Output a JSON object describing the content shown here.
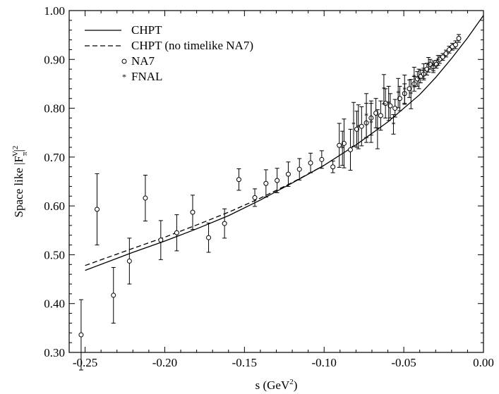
{
  "chart_data": {
    "type": "scatter",
    "title": "",
    "xlabel": {
      "main": "s (GeV",
      "sup": "2",
      "tail": ")"
    },
    "ylabel": {
      "main": "Space like |F",
      "sub": "π",
      "sup": "V",
      "tail": "|",
      "sup2": "2"
    },
    "xlim": [
      -0.26,
      0.0
    ],
    "ylim": [
      0.3,
      1.0
    ],
    "x_ticks": [
      -0.25,
      -0.2,
      -0.15,
      -0.1,
      -0.05,
      0.0
    ],
    "x_tick_labels": [
      "-0.25",
      "-0.20",
      "-0.15",
      "-0.10",
      "-0.05",
      "0.00"
    ],
    "y_ticks": [
      0.3,
      0.4,
      0.5,
      0.6,
      0.7,
      0.8,
      0.9,
      1.0
    ],
    "y_tick_labels": [
      "0.30",
      "0.40",
      "0.50",
      "0.60",
      "0.70",
      "0.80",
      "0.90",
      "1.00"
    ],
    "grid": false,
    "legend_position": "top-left",
    "legend": [
      {
        "label": "CHPT",
        "style": "solid-line"
      },
      {
        "label": "CHPT (no timelike NA7)",
        "style": "dashed-line"
      },
      {
        "label": "NA7",
        "style": "open-circle"
      },
      {
        "label": "FNAL",
        "style": "star"
      }
    ],
    "series": [
      {
        "name": "CHPT",
        "kind": "line",
        "x": [
          -0.25,
          -0.22,
          -0.2,
          -0.18,
          -0.16,
          -0.14,
          -0.12,
          -0.1,
          -0.08,
          -0.06,
          -0.04,
          -0.03,
          -0.02,
          -0.01,
          0.0
        ],
        "y": [
          0.468,
          0.505,
          0.528,
          0.553,
          0.58,
          0.612,
          0.647,
          0.683,
          0.725,
          0.772,
          0.828,
          0.863,
          0.902,
          0.944,
          0.99
        ]
      },
      {
        "name": "CHPT (no timelike NA7)",
        "kind": "line",
        "x": [
          -0.25,
          -0.22,
          -0.2,
          -0.18,
          -0.16,
          -0.14,
          -0.12,
          -0.1
        ],
        "y": [
          0.478,
          0.513,
          0.536,
          0.561,
          0.587,
          0.616,
          0.648,
          0.683
        ]
      },
      {
        "name": "NA7",
        "kind": "points",
        "x": [
          -0.2525,
          -0.2425,
          -0.2322,
          -0.2222,
          -0.2122,
          -0.2025,
          -0.1925,
          -0.1825,
          -0.1725,
          -0.1625,
          -0.1535,
          -0.1435,
          -0.1365,
          -0.1295,
          -0.1225,
          -0.1155,
          -0.1085,
          -0.1015,
          -0.0945,
          -0.0905,
          -0.0875,
          -0.0835,
          -0.0795,
          -0.0765,
          -0.0735,
          -0.0705,
          -0.0675,
          -0.0645,
          -0.0615,
          -0.0585,
          -0.0555,
          -0.0525,
          -0.0495,
          -0.0465,
          -0.0435,
          -0.0415,
          -0.0395,
          -0.0375,
          -0.0355,
          -0.0335,
          -0.0315,
          -0.0295,
          -0.0275,
          -0.0255,
          -0.0235,
          -0.0215,
          -0.0195,
          -0.0175,
          -0.0155
        ],
        "y": [
          0.336,
          0.593,
          0.417,
          0.487,
          0.616,
          0.53,
          0.545,
          0.587,
          0.535,
          0.564,
          0.654,
          0.617,
          0.646,
          0.652,
          0.665,
          0.675,
          0.688,
          0.695,
          0.68,
          0.724,
          0.728,
          0.715,
          0.757,
          0.763,
          0.77,
          0.78,
          0.79,
          0.785,
          0.81,
          0.805,
          0.8,
          0.82,
          0.83,
          0.84,
          0.85,
          0.86,
          0.865,
          0.87,
          0.88,
          0.89,
          0.885,
          0.89,
          0.9,
          0.905,
          0.912,
          0.92,
          0.926,
          0.93,
          0.943
        ],
        "err": [
          0.072,
          0.073,
          0.057,
          0.047,
          0.047,
          0.04,
          0.037,
          0.035,
          0.03,
          0.03,
          0.022,
          0.018,
          0.028,
          0.025,
          0.025,
          0.022,
          0.02,
          0.018,
          0.012,
          0.045,
          0.05,
          0.042,
          0.037,
          0.04,
          0.04,
          0.035,
          0.03,
          0.03,
          0.03,
          0.025,
          0.018,
          0.025,
          0.02,
          0.018,
          0.015,
          0.015,
          0.013,
          0.012,
          0.012,
          0.01,
          0.008,
          0.008,
          0.008,
          0.007,
          0.007,
          0.007,
          0.007,
          0.008,
          0.008
        ]
      },
      {
        "name": "FNAL",
        "kind": "stars",
        "x": [
          -0.0885,
          -0.0815,
          -0.0785,
          -0.0735,
          -0.0705,
          -0.0665,
          -0.0625,
          -0.0595,
          -0.0565,
          -0.0535,
          -0.0495,
          -0.0455,
          -0.0435,
          -0.0405,
          -0.0375,
          -0.0345,
          -0.0315,
          -0.0285
        ],
        "y": [
          0.718,
          0.767,
          0.762,
          0.785,
          0.77,
          0.757,
          0.839,
          0.81,
          0.767,
          0.831,
          0.838,
          0.829,
          0.864,
          0.86,
          0.876,
          0.889,
          0.885,
          0.898
        ],
        "err": [
          0.035,
          0.045,
          0.045,
          0.045,
          0.04,
          0.04,
          0.03,
          0.035,
          0.02,
          0.03,
          0.03,
          0.03,
          0.02,
          0.02,
          0.015,
          0.015,
          0.012,
          0.01
        ]
      }
    ]
  }
}
